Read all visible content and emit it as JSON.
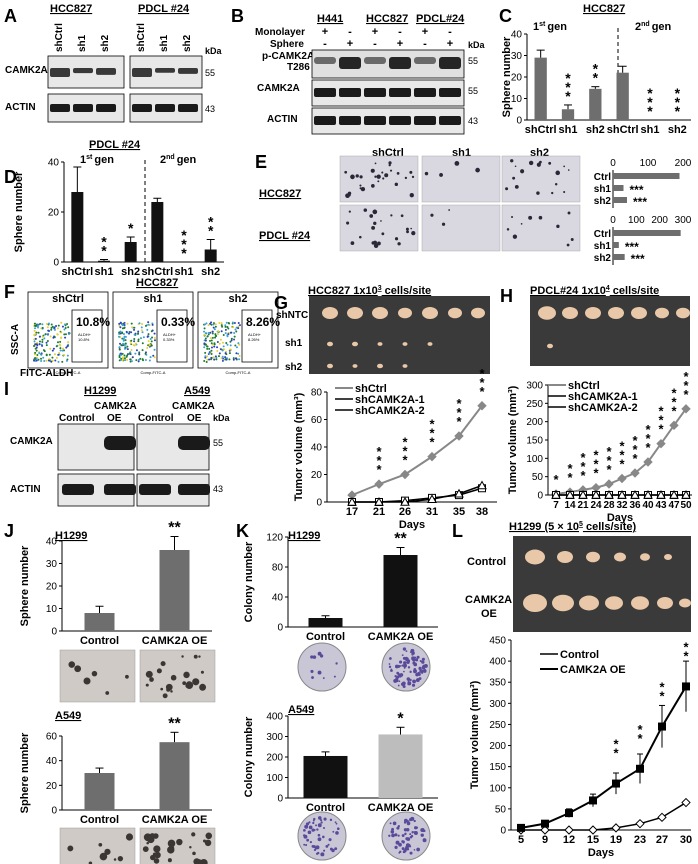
{
  "colors": {
    "gray_bar": "#6e6e6e",
    "black_bar": "#111111",
    "light_bar": "#bdbdbd",
    "gel_bg": "#e8e8e8",
    "band": "#1a1a1a",
    "photo_bg": "#3a3a3a",
    "tumor": "#e8c8a8",
    "dish": "#c9c6d6",
    "colony": "#5a4a9a"
  },
  "panels": {
    "A": {
      "letter": "A",
      "groups": [
        "HCC827",
        "PDCL #24"
      ],
      "lanes": [
        "shCtrl",
        "sh1",
        "sh2",
        "shCtrl",
        "sh1",
        "sh2"
      ],
      "kda": "kDa",
      "rows": [
        {
          "label": "CAMK2A",
          "marker": "55"
        },
        {
          "label": "ACTIN",
          "marker": "43"
        }
      ]
    },
    "B": {
      "letter": "B",
      "groups": [
        "H441",
        "HCC827",
        "PDCL#24"
      ],
      "cond_labels": [
        "Monolayer",
        "Sphere"
      ],
      "monolayer": [
        "+",
        "-",
        "+",
        "-",
        "+",
        "-"
      ],
      "sphere": [
        "-",
        "+",
        "-",
        "+",
        "-",
        "+"
      ],
      "kda": "kDa",
      "rows": [
        {
          "label": "p-CAMK2A",
          "label2": "T286",
          "marker": "55"
        },
        {
          "label": "CAMK2A",
          "marker": "55"
        },
        {
          "label": "ACTIN",
          "marker": "43"
        }
      ]
    },
    "C": {
      "letter": "C",
      "title": "HCC827",
      "gen1": "1",
      "gen2": "2",
      "gen1_sup": "st",
      "gen2_sup": "nd",
      "gen_word": "gen"
    },
    "D": {
      "letter": "D",
      "title": "PDCL #24",
      "gen1": "1",
      "gen2": "2",
      "gen1_sup": "st",
      "gen2_sup": "nd",
      "gen_word": "gen"
    },
    "E": {
      "letter": "E",
      "columns": [
        "shCtrl",
        "sh1",
        "sh2"
      ],
      "rows": [
        "HCC827",
        "PDCL #24"
      ]
    },
    "F": {
      "letter": "F",
      "title": "HCC827",
      "ylabel": "SSC-A",
      "xlabel": "FITC-ALDH",
      "plots": [
        {
          "name": "shCtrl",
          "pct": "10.8%",
          "gate": "ALDH+",
          "gate_val": "10.8%"
        },
        {
          "name": "sh1",
          "pct": "0.33%",
          "gate": "ALDH+",
          "gate_val": "0.33%"
        },
        {
          "name": "sh2",
          "pct": "8.26%",
          "gate": "ALDH+",
          "gate_val": "8.26%"
        }
      ],
      "axis_small_y": "SSC-A",
      "axis_small_x": "Comp-FITC-A"
    },
    "G": {
      "letter": "G",
      "title": "HCC827 1x10",
      "title_sup": "3",
      "title_tail": " cells/site",
      "rows": [
        "shNTC",
        "sh1",
        "sh2"
      ]
    },
    "H": {
      "letter": "H",
      "title": "PDCL#24  1x10",
      "title_sup": "4",
      "title_tail": " cells/site"
    },
    "I": {
      "letter": "I",
      "groups": [
        "H1299",
        "A549"
      ],
      "lanes": [
        "Control",
        "CAMK2A",
        "OE",
        "Control",
        "CAMK2A",
        "OE"
      ],
      "kda": "kDa",
      "rows": [
        {
          "label": "CAMK2A",
          "marker": "55"
        },
        {
          "label": "ACTIN",
          "marker": "43"
        }
      ]
    },
    "J": {
      "letter": "J",
      "sub": [
        "H1299",
        "A549"
      ]
    },
    "K": {
      "letter": "K",
      "sub": [
        "H1299",
        "A549"
      ]
    },
    "L": {
      "letter": "L",
      "title": "H1299 (5 × 10",
      "title_sup": "5",
      "title_tail": " cells/site)",
      "rows": [
        "Control",
        "CAMK2A",
        "OE"
      ]
    }
  },
  "chart_data": [
    {
      "id": "C",
      "type": "bar",
      "title": "HCC827",
      "ylabel": "Sphere number",
      "categories": [
        "shCtrl",
        "sh1",
        "sh2",
        "shCtrl",
        "sh1",
        "sh2"
      ],
      "values": [
        29,
        5,
        14.5,
        22,
        0,
        0
      ],
      "errors": [
        3.5,
        2,
        1,
        3,
        0,
        0
      ],
      "sig": [
        "",
        "***",
        "**",
        "",
        "***",
        "***"
      ],
      "ylim": [
        0,
        40
      ],
      "yticks": [
        0,
        10,
        20,
        30,
        40
      ],
      "color": "gray"
    },
    {
      "id": "D",
      "type": "bar",
      "title": "PDCL #24",
      "ylabel": "Sphere number",
      "categories": [
        "shCtrl",
        "sh1",
        "sh2",
        "shCtrl",
        "sh1",
        "sh2"
      ],
      "values": [
        28,
        0.5,
        8,
        24,
        0,
        5
      ],
      "errors": [
        10,
        0.5,
        2,
        1.5,
        0,
        4
      ],
      "sig": [
        "",
        "**",
        "*",
        "",
        "***",
        "**"
      ],
      "ylim": [
        0,
        40
      ],
      "yticks": [
        0,
        20,
        40
      ],
      "color": "black"
    },
    {
      "id": "E1",
      "type": "bar",
      "orientation": "horizontal",
      "categories": [
        "Ctrl",
        "sh1",
        "sh2"
      ],
      "values": [
        190,
        30,
        40
      ],
      "sig": [
        "",
        "***",
        "***"
      ],
      "xlim": [
        0,
        200
      ],
      "xticks": [
        0,
        100,
        200
      ]
    },
    {
      "id": "E2",
      "type": "bar",
      "orientation": "horizontal",
      "categories": [
        "Ctrl",
        "sh1",
        "sh2"
      ],
      "values": [
        290,
        25,
        50
      ],
      "sig": [
        "",
        "***",
        "***"
      ],
      "xlim": [
        0,
        300
      ],
      "xticks": [
        0,
        100,
        200,
        300
      ]
    },
    {
      "id": "G",
      "type": "line",
      "xlabel": "Days",
      "ylabel": "Tumor volume (mm³)",
      "x": [
        17,
        21,
        26,
        31,
        35,
        38
      ],
      "series": [
        {
          "name": "shCtrl",
          "values": [
            5,
            13,
            20,
            33,
            48,
            70
          ]
        },
        {
          "name": "shCAMK2A-1",
          "values": [
            0,
            0,
            1,
            3,
            5,
            10
          ]
        },
        {
          "name": "shCAMK2A-2",
          "values": [
            0,
            0,
            0,
            2,
            6,
            12
          ]
        }
      ],
      "sig": [
        "",
        "***",
        "***",
        "***",
        "***",
        "***"
      ],
      "ylim": [
        0,
        80
      ],
      "yticks": [
        0,
        20,
        40,
        60,
        80
      ]
    },
    {
      "id": "H",
      "type": "line",
      "xlabel": "Days",
      "ylabel": "Tumor volume (mm³)",
      "x": [
        7,
        14,
        21,
        24,
        28,
        32,
        36,
        40,
        43,
        47,
        50
      ],
      "series": [
        {
          "name": "shCtrl",
          "values": [
            3,
            8,
            14,
            20,
            30,
            45,
            60,
            90,
            140,
            190,
            235
          ]
        },
        {
          "name": "shCAMK2A-1",
          "values": [
            0,
            0,
            0,
            0,
            0,
            0,
            0,
            0,
            0,
            0,
            0
          ]
        },
        {
          "name": "shCAMK2A-2",
          "values": [
            0,
            0,
            0,
            0,
            0,
            0,
            0,
            0,
            0,
            0,
            0
          ]
        }
      ],
      "xticklabels": [
        "7",
        "14",
        "21",
        "24",
        "28",
        "32",
        "36",
        "40",
        "43",
        "47",
        "50"
      ],
      "sig": [
        "*",
        "**",
        "***",
        "***",
        "***",
        "***",
        "***",
        "***",
        "***",
        "***",
        "***"
      ],
      "ylim": [
        0,
        300
      ],
      "yticks": [
        0,
        50,
        100,
        150,
        200,
        250,
        300
      ]
    },
    {
      "id": "J1",
      "type": "bar",
      "title": "H1299",
      "ylabel": "Sphere number",
      "categories": [
        "Control",
        "CAMK2A OE"
      ],
      "values": [
        8,
        36
      ],
      "errors": [
        3,
        6
      ],
      "sig": [
        "",
        "**"
      ],
      "ylim": [
        0,
        40
      ],
      "yticks": [
        0,
        10,
        20,
        30,
        40
      ],
      "color": "gray"
    },
    {
      "id": "J2",
      "type": "bar",
      "title": "A549",
      "ylabel": "Sphere number",
      "categories": [
        "Control",
        "CAMK2A OE"
      ],
      "values": [
        30,
        55
      ],
      "errors": [
        4,
        8
      ],
      "sig": [
        "",
        "**"
      ],
      "ylim": [
        0,
        60
      ],
      "yticks": [
        0,
        20,
        40,
        60
      ],
      "color": "gray"
    },
    {
      "id": "K1",
      "type": "bar",
      "title": "H1299",
      "ylabel": "Colony number",
      "categories": [
        "Control",
        "CAMK2A OE"
      ],
      "values": [
        12,
        96
      ],
      "errors": [
        3,
        10
      ],
      "sig": [
        "",
        "**"
      ],
      "ylim": [
        0,
        120
      ],
      "yticks": [
        0,
        40,
        80,
        120
      ],
      "color": "black"
    },
    {
      "id": "K2",
      "type": "bar",
      "title": "A549",
      "ylabel": "Colony number",
      "categories": [
        "Control",
        "CAMK2A OE"
      ],
      "values": [
        205,
        310
      ],
      "errors": [
        20,
        35
      ],
      "sig": [
        "",
        "*"
      ],
      "ylim": [
        0,
        400
      ],
      "yticks": [
        0,
        100,
        200,
        300,
        400
      ],
      "colors": [
        "black",
        "lightgray"
      ]
    },
    {
      "id": "L",
      "type": "line",
      "xlabel": "Days",
      "ylabel": "Tumor volume (mm³)",
      "x": [
        5,
        9,
        12,
        15,
        19,
        23,
        27,
        30
      ],
      "series": [
        {
          "name": "Control",
          "values": [
            0,
            0,
            0,
            0,
            5,
            15,
            30,
            65
          ]
        },
        {
          "name": "CAMK2A OE",
          "values": [
            5,
            15,
            40,
            70,
            110,
            145,
            245,
            340
          ]
        }
      ],
      "errors_oe": [
        3,
        5,
        10,
        15,
        25,
        35,
        50,
        60
      ],
      "sig": [
        "",
        "",
        "",
        "",
        "**",
        "**",
        "**",
        "**"
      ],
      "ylim": [
        0,
        450
      ],
      "yticks": [
        0,
        50,
        100,
        150,
        200,
        250,
        300,
        350,
        400,
        450
      ]
    }
  ]
}
